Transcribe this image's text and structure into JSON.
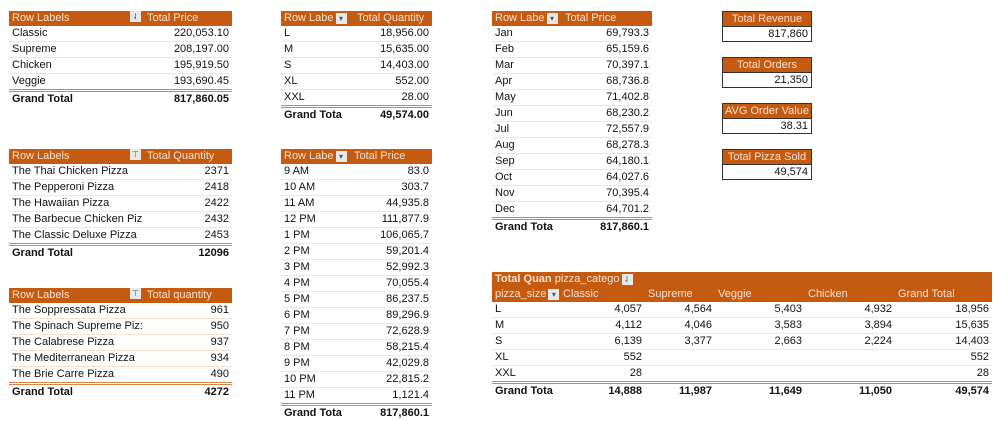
{
  "colors": {
    "header": "#c55a11",
    "header_text": "#fbe3d3",
    "total_border": "#d9824a"
  },
  "tables": [
    {
      "id": "category-price",
      "headers": [
        "Row Labels",
        "Total Price"
      ],
      "filter_icon": "sort-filter-icon",
      "rows": [
        [
          "Classic",
          "220,053.10"
        ],
        [
          "Supreme",
          "208,197.00"
        ],
        [
          "Chicken",
          "195,919.50"
        ],
        [
          "Veggie",
          "193,690.45"
        ]
      ],
      "total": [
        "Grand Total",
        "817,860.05"
      ]
    },
    {
      "id": "size-quantity",
      "headers": [
        "Row Labe",
        "Total Quantity"
      ],
      "filter_icon": "dropdown-icon",
      "rows": [
        [
          "L",
          "18,956.00"
        ],
        [
          "M",
          "15,635.00"
        ],
        [
          "S",
          "14,403.00"
        ],
        [
          "XL",
          "552.00"
        ],
        [
          "XXL",
          "28.00"
        ]
      ],
      "total": [
        "Grand Tota",
        "49,574.00"
      ]
    },
    {
      "id": "month-price",
      "headers": [
        "Row Labe",
        "Total Price"
      ],
      "filter_icon": "dropdown-icon",
      "rows": [
        [
          "Jan",
          "69,793.3"
        ],
        [
          "Feb",
          "65,159.6"
        ],
        [
          "Mar",
          "70,397.1"
        ],
        [
          "Apr",
          "68,736.8"
        ],
        [
          "May",
          "71,402.8"
        ],
        [
          "Jun",
          "68,230.2"
        ],
        [
          "Jul",
          "72,557.9"
        ],
        [
          "Aug",
          "68,278.3"
        ],
        [
          "Sep",
          "64,180.1"
        ],
        [
          "Oct",
          "64,027.6"
        ],
        [
          "Nov",
          "70,395.4"
        ],
        [
          "Dec",
          "64,701.2"
        ]
      ],
      "total": [
        "Grand Tota",
        "817,860.1"
      ]
    },
    {
      "id": "top-pizzas-quantity",
      "headers": [
        "Row Labels",
        "Total Quantity"
      ],
      "filter_icon": "filter-icon",
      "rows": [
        [
          "The Thai Chicken Pizza",
          "2371"
        ],
        [
          "The Pepperoni Pizza",
          "2418"
        ],
        [
          "The Hawaiian Pizza",
          "2422"
        ],
        [
          "The Barbecue Chicken Piz",
          "2432"
        ],
        [
          "The Classic Deluxe Pizza",
          "2453"
        ]
      ],
      "total": [
        "Grand Total",
        "12096"
      ]
    },
    {
      "id": "bottom-pizzas-quantity",
      "headers": [
        "Row Labels",
        "Total quantity"
      ],
      "filter_icon": "filter-icon",
      "rows": [
        [
          "The Soppressata Pizza",
          "961"
        ],
        [
          "The Spinach Supreme Piz:",
          "950"
        ],
        [
          "The Calabrese Pizza",
          "937"
        ],
        [
          "The Mediterranean Pizza",
          "934"
        ],
        [
          "The Brie Carre Pizza",
          "490"
        ]
      ],
      "total": [
        "Grand Total",
        "4272"
      ]
    },
    {
      "id": "hour-price",
      "headers": [
        "Row Labe",
        "Total Price"
      ],
      "filter_icon": "dropdown-icon",
      "rows": [
        [
          "9 AM",
          "83.0"
        ],
        [
          "10 AM",
          "303.7"
        ],
        [
          "11 AM",
          "44,935.8"
        ],
        [
          "12 PM",
          "111,877.9"
        ],
        [
          "1 PM",
          "106,065.7"
        ],
        [
          "2 PM",
          "59,201.4"
        ],
        [
          "3 PM",
          "52,992.3"
        ],
        [
          "4 PM",
          "70,055.4"
        ],
        [
          "5 PM",
          "86,237.5"
        ],
        [
          "6 PM",
          "89,296.9"
        ],
        [
          "7 PM",
          "72,628.9"
        ],
        [
          "8 PM",
          "58,215.4"
        ],
        [
          "9 PM",
          "42,029.8"
        ],
        [
          "10 PM",
          "22,815.2"
        ],
        [
          "11 PM",
          "1,121.4"
        ]
      ],
      "total": [
        "Grand Tota",
        "817,860.1"
      ]
    }
  ],
  "kpis": [
    {
      "label": "Total Revenue",
      "value": "817,860"
    },
    {
      "label": "Total Orders",
      "value": "21,350"
    },
    {
      "label": "AVG Order Value",
      "value": "38.31"
    },
    {
      "label": "Total Pizza Sold",
      "value": "49,574"
    }
  ],
  "crosstab": {
    "corner": "Total Quan",
    "column_field": "pizza_catego",
    "row_field": "pizza_size",
    "columns": [
      "Classic",
      "Supreme",
      "Veggie",
      "Chicken",
      "Grand Total"
    ],
    "rows": [
      [
        "L",
        "4,057",
        "4,564",
        "5,403",
        "4,932",
        "18,956"
      ],
      [
        "M",
        "4,112",
        "4,046",
        "3,583",
        "3,894",
        "15,635"
      ],
      [
        "S",
        "6,139",
        "3,377",
        "2,663",
        "2,224",
        "14,403"
      ],
      [
        "XL",
        "552",
        "",
        "",
        "",
        "552"
      ],
      [
        "XXL",
        "28",
        "",
        "",
        "",
        "28"
      ]
    ],
    "total": [
      "Grand Tota",
      "14,888",
      "11,987",
      "11,649",
      "11,050",
      "49,574"
    ]
  }
}
